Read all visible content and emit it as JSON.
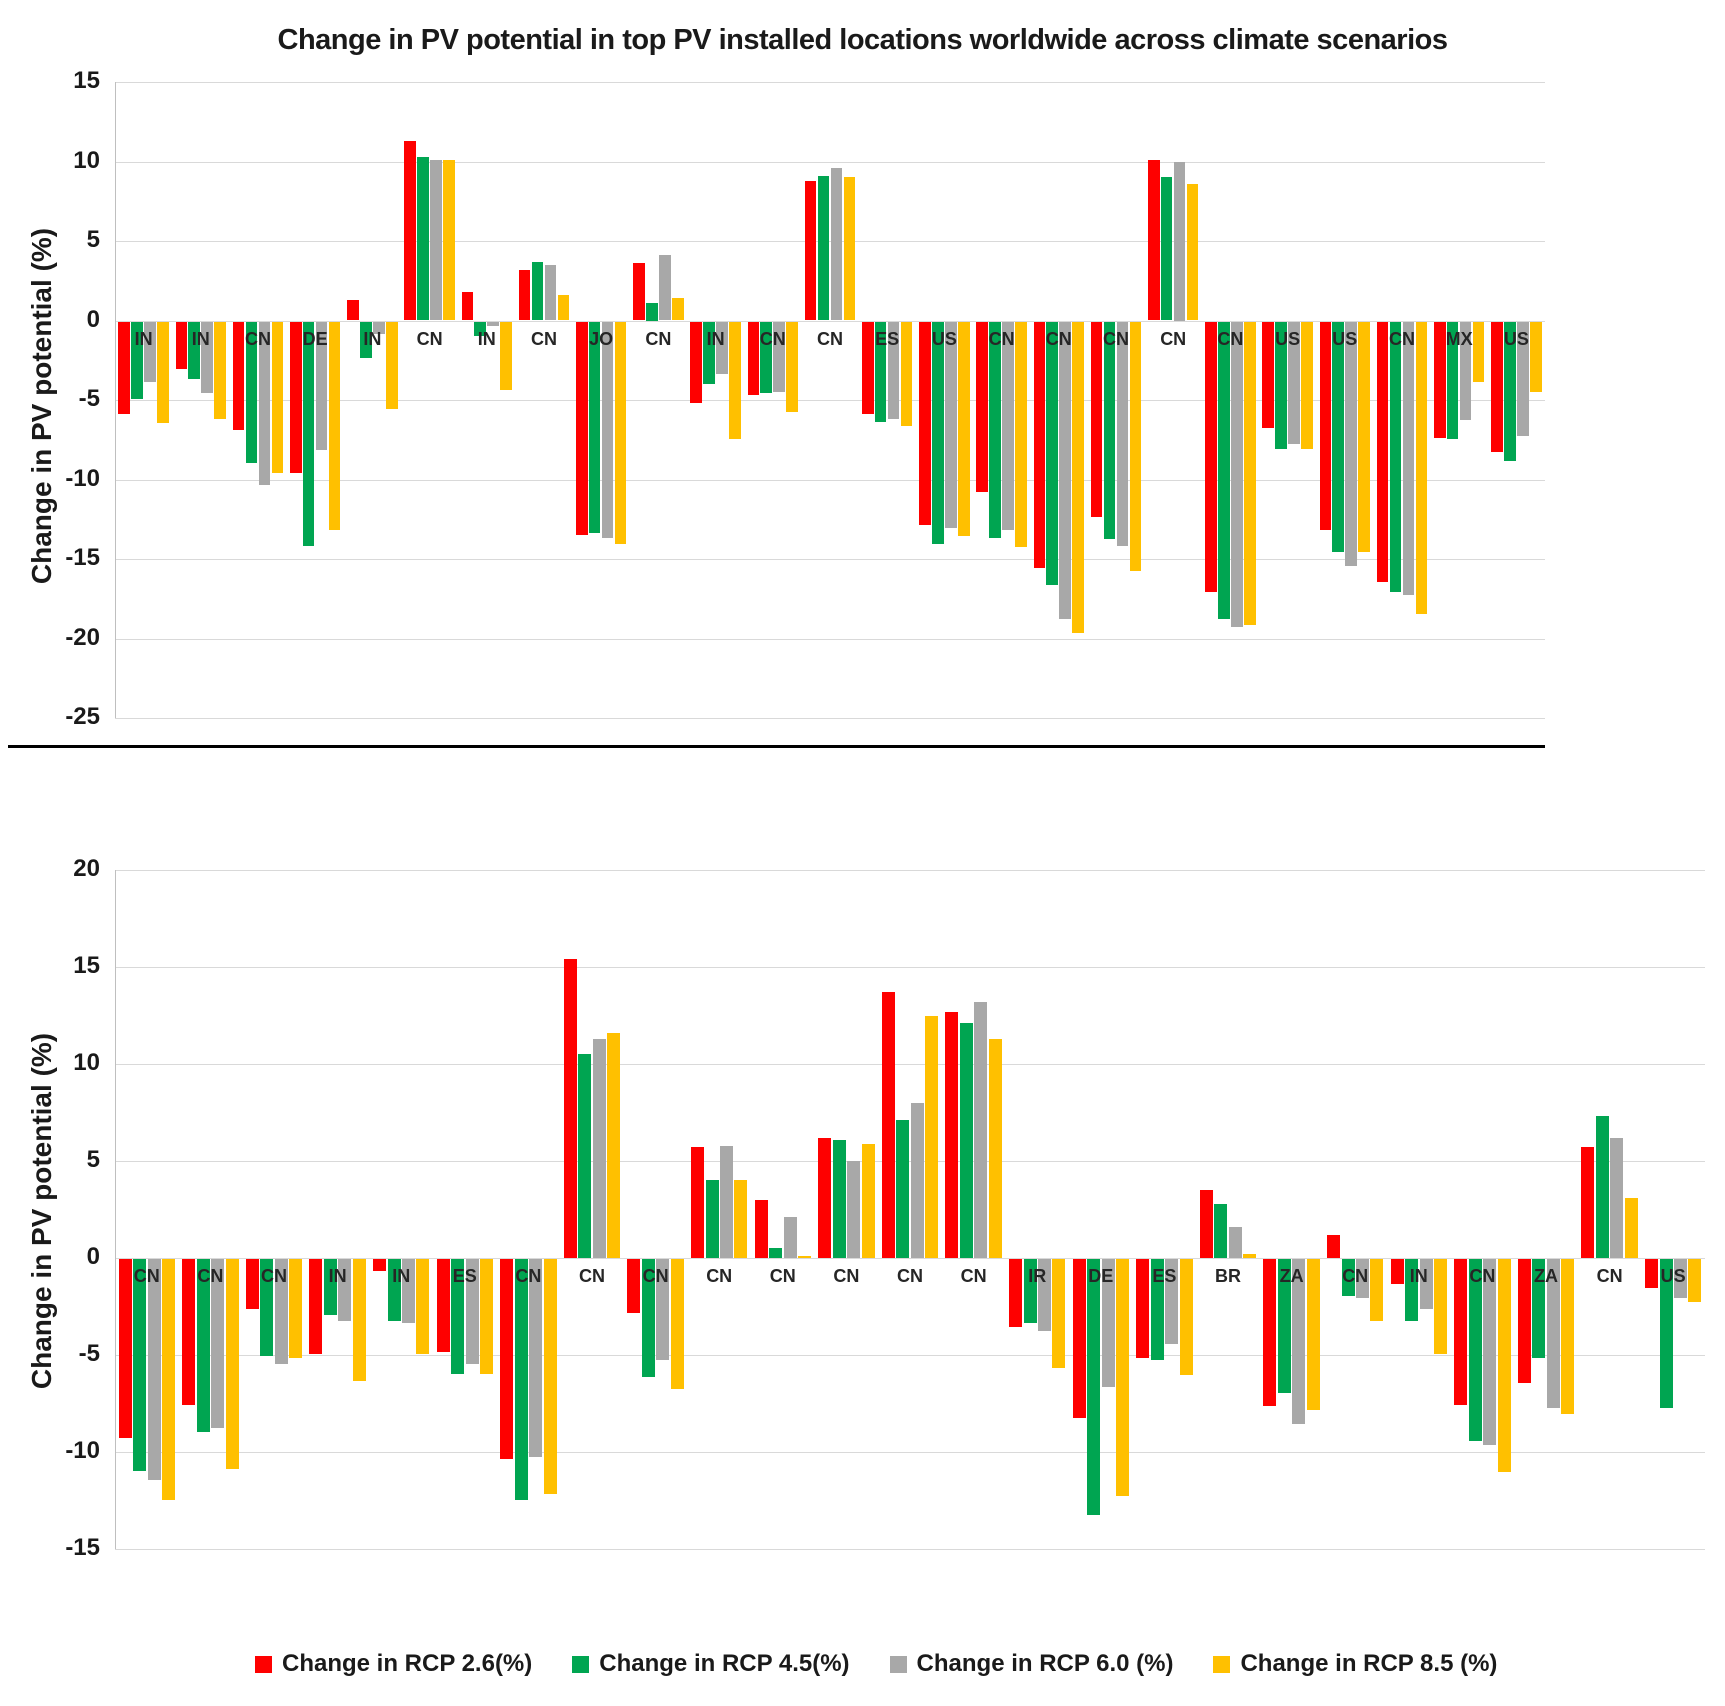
{
  "title": "Change in PV potential in top PV installed locations worldwide across climate scenarios",
  "y_axis_label": "Change in PV potential (%)",
  "colors": {
    "rcp26": "#fe0000",
    "rcp45": "#00a551",
    "rcp60": "#a8a8a8",
    "rcp85": "#ffc000",
    "gridline": "#d9d9d9",
    "divider": "#000000"
  },
  "legend": {
    "items": [
      {
        "label": "Change in RCP 2.6(%)",
        "color_key": "rcp26"
      },
      {
        "label": "Change in RCP 4.5(%)",
        "color_key": "rcp45"
      },
      {
        "label": "Change in RCP 6.0 (%)",
        "color_key": "rcp60"
      },
      {
        "label": "Change in RCP 8.5 (%)",
        "color_key": "rcp85"
      }
    ]
  },
  "chart_data": [
    {
      "type": "bar",
      "panel": "top",
      "ylabel": "Change in PV potential (%)",
      "ylim": [
        -25,
        15
      ],
      "yticks": [
        15,
        10,
        5,
        0,
        -5,
        -10,
        -15,
        -20,
        -25
      ],
      "grid": true,
      "legend_position": "none",
      "categories": [
        "IN",
        "IN",
        "CN",
        "DE",
        "IN",
        "CN",
        "IN",
        "CN",
        "JO",
        "CN",
        "IN",
        "CN",
        "CN",
        "ES",
        "US",
        "CN",
        "CN",
        "CN",
        "CN",
        "CN",
        "US",
        "US",
        "CN",
        "MX",
        "US"
      ],
      "series": [
        {
          "name": "Change in RCP 2.6(%)",
          "color_key": "rcp26",
          "values": [
            -5.8,
            -3.0,
            -6.8,
            -9.5,
            1.3,
            11.3,
            1.8,
            3.2,
            -13.4,
            3.6,
            -5.1,
            -4.6,
            8.8,
            -5.8,
            -12.8,
            -10.7,
            -15.5,
            -12.3,
            10.1,
            -17.0,
            -6.7,
            -13.1,
            -16.4,
            -7.3,
            -8.2
          ]
        },
        {
          "name": "Change in RCP 4.5(%)",
          "color_key": "rcp45",
          "values": [
            -4.9,
            -3.6,
            -8.9,
            -14.1,
            -2.3,
            10.3,
            -0.9,
            3.7,
            -13.3,
            1.1,
            -3.9,
            -4.5,
            9.1,
            -6.3,
            -14.0,
            -13.6,
            -16.6,
            -13.7,
            9.0,
            -18.7,
            -8.0,
            -14.5,
            -17.0,
            -7.4,
            -8.8
          ]
        },
        {
          "name": "Change in RCP 6.0 (%)",
          "color_key": "rcp60",
          "values": [
            -3.8,
            -4.5,
            -10.3,
            -8.1,
            -0.8,
            10.1,
            -0.3,
            3.5,
            -13.6,
            4.1,
            -3.3,
            -4.4,
            9.6,
            -6.1,
            -13.0,
            -13.1,
            -18.7,
            -14.1,
            10.0,
            -19.2,
            -7.7,
            -15.4,
            -17.2,
            -6.2,
            -7.2
          ]
        },
        {
          "name": "Change in RCP 8.5 (%)",
          "color_key": "rcp85",
          "values": [
            -6.4,
            -6.1,
            -9.5,
            -13.1,
            -5.5,
            10.1,
            -4.3,
            1.6,
            -14.0,
            1.4,
            -7.4,
            -5.7,
            9.0,
            -6.6,
            -13.5,
            -14.2,
            -19.6,
            -15.7,
            8.6,
            -19.1,
            -8.0,
            -14.5,
            -18.4,
            -3.8,
            -4.4
          ]
        }
      ]
    },
    {
      "type": "bar",
      "panel": "bottom",
      "ylabel": "Change in PV potential (%)",
      "ylim": [
        -15,
        20
      ],
      "yticks": [
        20,
        15,
        10,
        5,
        0,
        -5,
        -10,
        -15
      ],
      "grid": true,
      "legend_position": "bottom",
      "categories": [
        "CN",
        "CN",
        "CN",
        "IN",
        "IN",
        "ES",
        "CN",
        "CN",
        "CN",
        "CN",
        "CN",
        "CN",
        "CN",
        "CN",
        "IR",
        "DE",
        "ES",
        "BR",
        "ZA",
        "CN",
        "IN",
        "CN",
        "ZA",
        "CN",
        "US"
      ],
      "series": [
        {
          "name": "Change in RCP 2.6(%)",
          "color_key": "rcp26",
          "values": [
            -9.2,
            -7.5,
            -2.6,
            -4.9,
            -0.6,
            -4.8,
            -10.3,
            15.4,
            -2.8,
            5.7,
            3.0,
            6.2,
            13.7,
            12.7,
            -3.5,
            -8.2,
            -5.1,
            3.5,
            -7.6,
            1.2,
            -1.3,
            -7.5,
            -6.4,
            5.7,
            -1.5
          ]
        },
        {
          "name": "Change in RCP 4.5(%)",
          "color_key": "rcp45",
          "values": [
            -10.9,
            -8.9,
            -5.0,
            -2.9,
            -3.2,
            -5.9,
            -12.4,
            10.5,
            -6.1,
            4.0,
            0.5,
            6.1,
            7.1,
            12.1,
            -3.3,
            -13.2,
            -5.2,
            2.8,
            -6.9,
            -1.9,
            -3.2,
            -9.4,
            -5.1,
            7.3,
            -7.7
          ]
        },
        {
          "name": "Change in RCP 6.0 (%)",
          "color_key": "rcp60",
          "values": [
            -11.4,
            -8.7,
            -5.4,
            -3.2,
            -3.3,
            -5.4,
            -10.2,
            11.3,
            -5.2,
            5.8,
            2.1,
            5.0,
            8.0,
            13.2,
            -3.7,
            -6.6,
            -4.4,
            1.6,
            -8.5,
            -2.0,
            -2.6,
            -9.6,
            -7.7,
            6.2,
            -2.0
          ]
        },
        {
          "name": "Change in RCP 8.5 (%)",
          "color_key": "rcp85",
          "values": [
            -12.4,
            -10.8,
            -5.1,
            -6.3,
            -4.9,
            -5.9,
            -12.1,
            11.6,
            -6.7,
            4.0,
            0.1,
            5.9,
            12.5,
            11.3,
            -5.6,
            -12.2,
            -6.0,
            0.2,
            -7.8,
            -3.2,
            -4.9,
            -11.0,
            -8.0,
            3.1,
            -2.2
          ]
        }
      ]
    }
  ]
}
